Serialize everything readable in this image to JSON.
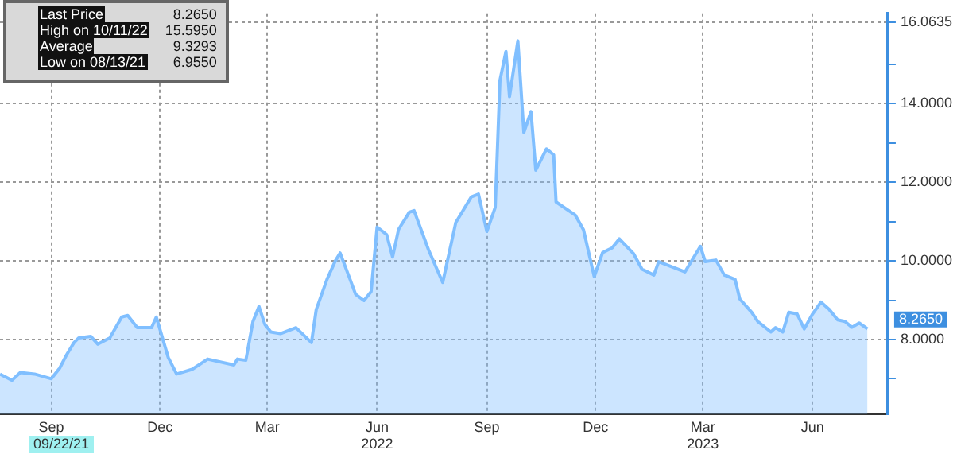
{
  "chart_data": {
    "type": "area",
    "x": [
      "2021-08-03",
      "2021-08-13",
      "2021-08-20",
      "2021-09-01",
      "2021-09-15",
      "2021-09-22",
      "2021-09-28",
      "2021-10-04",
      "2021-10-08",
      "2021-10-18",
      "2021-10-24",
      "2021-11-03",
      "2021-11-13",
      "2021-11-18",
      "2021-11-26",
      "2021-12-08",
      "2021-12-12",
      "2021-12-22",
      "2021-12-29",
      "2022-01-11",
      "2022-01-24",
      "2022-02-15",
      "2022-02-18",
      "2022-02-25",
      "2022-03-03",
      "2022-03-08",
      "2022-03-13",
      "2022-03-18",
      "2022-03-26",
      "2022-04-08",
      "2022-04-21",
      "2022-04-25",
      "2022-05-04",
      "2022-05-11",
      "2022-05-15",
      "2022-05-22",
      "2022-05-28",
      "2022-06-04",
      "2022-06-10",
      "2022-06-15",
      "2022-06-23",
      "2022-06-28",
      "2022-07-03",
      "2022-07-12",
      "2022-07-16",
      "2022-07-28",
      "2022-08-09",
      "2022-08-20",
      "2022-09-02",
      "2022-09-08",
      "2022-09-15",
      "2022-09-22",
      "2022-09-26",
      "2022-10-01",
      "2022-10-04",
      "2022-10-11",
      "2022-10-16",
      "2022-10-22",
      "2022-10-26",
      "2022-11-04",
      "2022-11-10",
      "2022-11-12",
      "2022-11-28",
      "2022-12-05",
      "2022-12-14",
      "2022-12-21",
      "2022-12-29",
      "2023-01-04",
      "2023-01-16",
      "2023-01-23",
      "2023-02-02",
      "2023-02-06",
      "2023-02-28",
      "2023-03-13",
      "2023-03-17",
      "2023-03-26",
      "2023-04-02",
      "2023-04-11",
      "2023-04-15",
      "2023-04-25",
      "2023-04-30",
      "2023-05-11",
      "2023-05-15",
      "2023-05-21",
      "2023-05-26",
      "2023-06-02",
      "2023-06-08",
      "2023-06-15",
      "2023-06-22",
      "2023-06-29",
      "2023-07-06",
      "2023-07-12",
      "2023-07-18",
      "2023-07-24",
      "2023-07-31"
    ],
    "series": [
      {
        "color": "#80bfff",
        "values": [
          7.12,
          6.96,
          7.16,
          7.12,
          7.0,
          7.27,
          7.62,
          7.92,
          8.04,
          8.08,
          7.88,
          8.04,
          8.57,
          8.61,
          8.3,
          8.3,
          8.57,
          7.54,
          7.12,
          7.24,
          7.5,
          7.35,
          7.5,
          7.47,
          8.46,
          8.84,
          8.38,
          8.19,
          8.15,
          8.3,
          7.92,
          8.76,
          9.53,
          10.0,
          10.2,
          9.64,
          9.15,
          8.99,
          9.22,
          10.86,
          10.67,
          10.1,
          10.8,
          11.24,
          11.28,
          10.29,
          9.45,
          10.98,
          11.63,
          11.7,
          10.75,
          11.36,
          14.6,
          15.33,
          14.18,
          15.6,
          13.27,
          13.8,
          12.31,
          12.85,
          12.7,
          11.5,
          11.17,
          10.79,
          9.6,
          10.21,
          10.33,
          10.56,
          10.18,
          9.79,
          9.64,
          9.98,
          9.72,
          10.37,
          9.98,
          10.02,
          9.64,
          9.53,
          9.03,
          8.69,
          8.46,
          8.19,
          8.3,
          8.19,
          8.69,
          8.65,
          8.27,
          8.65,
          8.95,
          8.76,
          8.5,
          8.46,
          8.31,
          8.42,
          8.27
        ]
      }
    ],
    "xlim": [
      "2021-08-03",
      "2023-08-17"
    ],
    "xticks": [
      {
        "value": "2021-09-15",
        "label": "Sep"
      },
      {
        "value": "2021-12-15",
        "label": "Dec"
      },
      {
        "value": "2022-03-15",
        "label": "Mar"
      },
      {
        "value": "2022-06-15",
        "label": "Jun\n2022"
      },
      {
        "value": "2022-09-15",
        "label": "Sep"
      },
      {
        "value": "2022-12-15",
        "label": "Dec"
      },
      {
        "value": "2023-03-15",
        "label": "Mar\n2023"
      },
      {
        "value": "2023-06-15",
        "label": "Jun"
      }
    ],
    "ylim": [
      6.1,
      16.3
    ],
    "yticks": [
      {
        "value": 7,
        "label": null
      },
      {
        "value": 8,
        "label": "8.0000"
      },
      {
        "value": 9,
        "label": null
      },
      {
        "value": 10,
        "label": "10.0000"
      },
      {
        "value": 11,
        "label": null
      },
      {
        "value": 12,
        "label": "12.0000"
      },
      {
        "value": 13,
        "label": null
      },
      {
        "value": 14,
        "label": "14.0000"
      },
      {
        "value": 15,
        "label": null
      },
      {
        "value": 16.0635,
        "label": "16.0635"
      }
    ],
    "grid": true,
    "legend": false,
    "annotations": [
      "Last Price",
      "8.2650",
      "High on 10/11/22",
      "15.5950",
      "Average",
      "9.3293",
      "Low on 08/13/21",
      "6.9550",
      {
        "text": "8.2650",
        "x": "2023-07-31",
        "y": 8.265
      },
      "09/22/21"
    ]
  }
}
